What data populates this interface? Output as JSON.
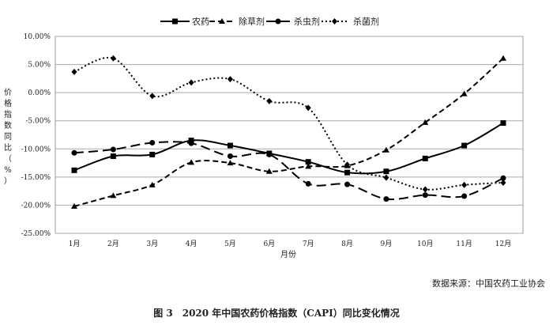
{
  "chart_data": {
    "type": "line",
    "title": "",
    "xlabel": "月份",
    "ylabel": "价格指数同比（%）",
    "categories": [
      "1月",
      "2月",
      "3月",
      "4月",
      "5月",
      "6月",
      "7月",
      "8月",
      "9月",
      "10月",
      "11月",
      "12月"
    ],
    "ylim": [
      -25,
      10
    ],
    "yticks": [
      "10.00%",
      "5.00%",
      "0.00%",
      "-5.00%",
      "-10.00%",
      "-15.00%",
      "-20.00%",
      "-25.00%"
    ],
    "ytick_values": [
      10,
      5,
      0,
      -5,
      -10,
      -15,
      -20,
      -25
    ],
    "grid": true,
    "legend_position": "top",
    "series": [
      {
        "name": "农药",
        "marker": "square",
        "line": "solid",
        "color": "#000000",
        "values": [
          -13.8,
          -11.3,
          -11.0,
          -8.5,
          -9.4,
          -10.8,
          -12.3,
          -14.2,
          -14.0,
          -11.7,
          -9.4,
          -5.4
        ]
      },
      {
        "name": "除草剂",
        "marker": "triangle",
        "line": "short-dash",
        "color": "#000000",
        "values": [
          -20.2,
          -18.3,
          -16.4,
          -12.4,
          -12.5,
          -14.0,
          -13.1,
          -13.0,
          -10.2,
          -5.3,
          -0.2,
          6.1
        ]
      },
      {
        "name": "杀虫剂",
        "marker": "circle",
        "line": "long-dash",
        "color": "#000000",
        "values": [
          -10.7,
          -10.1,
          -8.9,
          -9.0,
          -11.3,
          -11.0,
          -16.2,
          -16.3,
          -18.9,
          -18.2,
          -18.4,
          -15.2
        ]
      },
      {
        "name": "杀菌剂",
        "marker": "diamond",
        "line": "dotted",
        "color": "#000000",
        "values": [
          3.7,
          6.1,
          -0.6,
          1.8,
          2.4,
          -1.5,
          -2.7,
          -12.8,
          -15.1,
          -17.2,
          -16.4,
          -16.0
        ]
      }
    ]
  },
  "source_note": "数据来源：中国农药工业协会",
  "caption": "图 3　2020 年中国农药价格指数（CAPI）同比变化情况"
}
